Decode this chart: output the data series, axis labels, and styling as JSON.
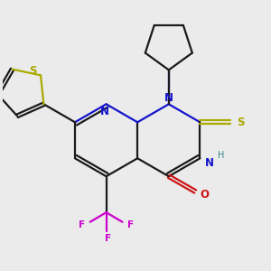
{
  "background_color": "#ebebeb",
  "line_width": 1.6,
  "bond_colors": {
    "default": "#1a1a1a",
    "N": "#1414cc",
    "O": "#cc1414",
    "S": "#aaaa00",
    "F": "#cc00cc",
    "H": "#3a8888"
  }
}
